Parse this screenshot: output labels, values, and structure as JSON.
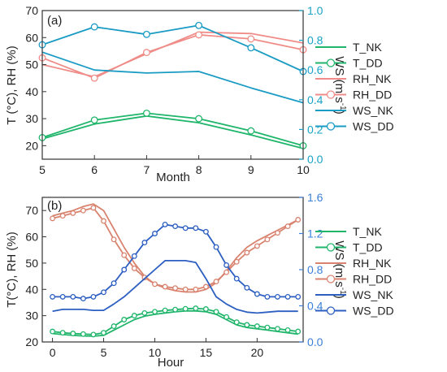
{
  "colors": {
    "T": "#1fb56a",
    "RH": "#f08c88",
    "WS_a": "#1a9bc4",
    "RH_b": "#d9836f",
    "WS_b": "#2d5fc2",
    "right_axis_a": "#1aa3c8",
    "right_axis_b": "#3b7fd9"
  },
  "chart_data": [
    {
      "type": "line",
      "panel_label": "(a)",
      "xlabel": "Month",
      "ylabel_left": "T (°C), RH (%)",
      "ylabel_right_main": "WS (m s",
      "ylabel_right_sup": "-1",
      "ylabel_right_close": ")",
      "xlim": [
        5,
        10
      ],
      "ylim_left": [
        15,
        70
      ],
      "ylim_right": [
        0,
        1.0
      ],
      "x_ticks": [
        "5",
        "6",
        "7",
        "8",
        "9",
        "10"
      ],
      "y_left_ticks": [
        "20",
        "30",
        "40",
        "50",
        "60",
        "70"
      ],
      "y_right_ticks": [
        "0.0",
        "0.2",
        "0.4",
        "0.6",
        "0.8",
        "1.0"
      ],
      "series": [
        {
          "name": "T_NK",
          "axis": "left",
          "marker": false,
          "color": "T",
          "x": [
            5,
            6,
            7,
            8,
            9,
            10
          ],
          "values": [
            22.5,
            28,
            31,
            28.5,
            24,
            19
          ]
        },
        {
          "name": "T_DD",
          "axis": "left",
          "marker": true,
          "color": "T",
          "x": [
            5,
            6,
            7,
            8,
            9,
            10
          ],
          "values": [
            23,
            29.5,
            32,
            30,
            25.5,
            20
          ]
        },
        {
          "name": "RH_NK",
          "axis": "left",
          "marker": false,
          "color": "RH",
          "x": [
            5,
            6,
            7,
            8,
            9,
            10
          ],
          "values": [
            50,
            45.5,
            54,
            62,
            61.5,
            58
          ]
        },
        {
          "name": "RH_DD",
          "axis": "left",
          "marker": true,
          "color": "RH",
          "x": [
            5,
            6,
            7,
            8,
            9,
            10
          ],
          "values": [
            52.5,
            45,
            54.5,
            61,
            59.5,
            55.5
          ]
        },
        {
          "name": "WS_NK",
          "axis": "right",
          "marker": false,
          "color": "WS_a",
          "x": [
            5,
            6,
            7,
            8,
            9,
            10
          ],
          "values": [
            0.72,
            0.6,
            0.58,
            0.59,
            0.48,
            0.38
          ]
        },
        {
          "name": "WS_DD",
          "axis": "right",
          "marker": true,
          "color": "WS_a",
          "x": [
            5,
            6,
            7,
            8,
            9,
            10
          ],
          "values": [
            0.77,
            0.89,
            0.84,
            0.9,
            0.75,
            0.59
          ]
        }
      ]
    },
    {
      "type": "line",
      "panel_label": "(b)",
      "xlabel": "Hour",
      "ylabel_left": "T(°C), RH (%)",
      "ylabel_right_main": "WS (m s",
      "ylabel_right_sup": "-1",
      "ylabel_right_close": ")",
      "xlim": [
        -1,
        24.5
      ],
      "ylim_left": [
        20,
        75
      ],
      "ylim_right": [
        0,
        1.6
      ],
      "x_ticks": [
        "0",
        "5",
        "10",
        "15",
        "20"
      ],
      "x_tick_values": [
        0,
        5,
        10,
        15,
        20
      ],
      "y_left_ticks": [
        "20",
        "30",
        "40",
        "50",
        "60",
        "70"
      ],
      "y_right_ticks": [
        "0.0",
        "0.4",
        "0.8",
        "1.2",
        "1.6"
      ],
      "series": [
        {
          "name": "T_NK",
          "axis": "left",
          "marker": false,
          "color": "T",
          "x": [
            0,
            1,
            2,
            3,
            4,
            5,
            6,
            7,
            8,
            9,
            10,
            11,
            12,
            13,
            14,
            15,
            16,
            17,
            18,
            19,
            20,
            21,
            22,
            23,
            24
          ],
          "values": [
            23.2,
            22.8,
            22.5,
            22.3,
            22.2,
            22.5,
            24.5,
            26.5,
            28.5,
            29.8,
            30.5,
            31,
            31.5,
            31.8,
            31.8,
            31.5,
            30.5,
            28.5,
            26.5,
            25.5,
            25,
            24.5,
            24,
            23.5,
            23
          ]
        },
        {
          "name": "T_DD",
          "axis": "left",
          "marker": true,
          "color": "T",
          "x": [
            0,
            1,
            2,
            3,
            4,
            5,
            6,
            7,
            8,
            9,
            10,
            11,
            12,
            13,
            14,
            15,
            16,
            17,
            18,
            19,
            20,
            21,
            22,
            23,
            24
          ],
          "values": [
            24,
            23.5,
            23.2,
            23,
            22.8,
            23.5,
            26,
            28.5,
            30,
            31,
            31.5,
            32,
            32.3,
            32.6,
            32.8,
            32.5,
            31.5,
            29.5,
            27.5,
            26.5,
            26,
            25.5,
            25,
            24.5,
            24
          ]
        },
        {
          "name": "RH_NK",
          "axis": "left",
          "marker": false,
          "color": "RH_b",
          "x": [
            0,
            1,
            2,
            3,
            4,
            5,
            6,
            7,
            8,
            9,
            10,
            11,
            12,
            13,
            14,
            15,
            16,
            17,
            18,
            19,
            20,
            21,
            22,
            23,
            24
          ],
          "values": [
            68,
            69,
            70,
            71.5,
            72.5,
            70,
            63,
            56,
            50,
            45,
            42,
            40.5,
            39.5,
            39,
            39,
            40,
            42.5,
            47,
            52,
            56,
            58.5,
            60.5,
            62.5,
            64.5,
            66.5
          ]
        },
        {
          "name": "RH_DD",
          "axis": "left",
          "marker": true,
          "color": "RH_b",
          "x": [
            0,
            1,
            2,
            3,
            4,
            5,
            6,
            7,
            8,
            9,
            10,
            11,
            12,
            13,
            14,
            15,
            16,
            17,
            18,
            19,
            20,
            21,
            22,
            23,
            24
          ],
          "values": [
            67,
            68,
            69,
            70,
            71,
            66,
            59,
            53,
            48,
            44.5,
            42,
            41,
            40.5,
            40,
            40,
            41,
            43,
            46.5,
            50.5,
            54,
            56.5,
            59,
            61.5,
            64,
            66.5
          ]
        },
        {
          "name": "WS_NK",
          "axis": "right",
          "marker": false,
          "color": "WS_b",
          "x": [
            0,
            1,
            2,
            3,
            4,
            5,
            6,
            7,
            8,
            9,
            10,
            11,
            12,
            13,
            14,
            15,
            16,
            17,
            18,
            19,
            20,
            21,
            22,
            23,
            24
          ],
          "values": [
            0.34,
            0.36,
            0.36,
            0.36,
            0.35,
            0.35,
            0.42,
            0.5,
            0.6,
            0.7,
            0.8,
            0.9,
            0.9,
            0.9,
            0.88,
            0.7,
            0.5,
            0.42,
            0.36,
            0.33,
            0.32,
            0.33,
            0.34,
            0.34,
            0.34
          ]
        },
        {
          "name": "WS_DD",
          "axis": "right",
          "marker": true,
          "color": "WS_b",
          "x": [
            0,
            1,
            2,
            3,
            4,
            5,
            6,
            7,
            8,
            9,
            10,
            11,
            12,
            13,
            14,
            15,
            16,
            17,
            18,
            19,
            20,
            21,
            22,
            23,
            24
          ],
          "values": [
            0.5,
            0.5,
            0.5,
            0.48,
            0.5,
            0.55,
            0.65,
            0.8,
            0.95,
            1.1,
            1.2,
            1.3,
            1.28,
            1.26,
            1.26,
            1.22,
            1.05,
            0.85,
            0.7,
            0.6,
            0.53,
            0.5,
            0.5,
            0.5,
            0.5
          ]
        }
      ]
    }
  ]
}
